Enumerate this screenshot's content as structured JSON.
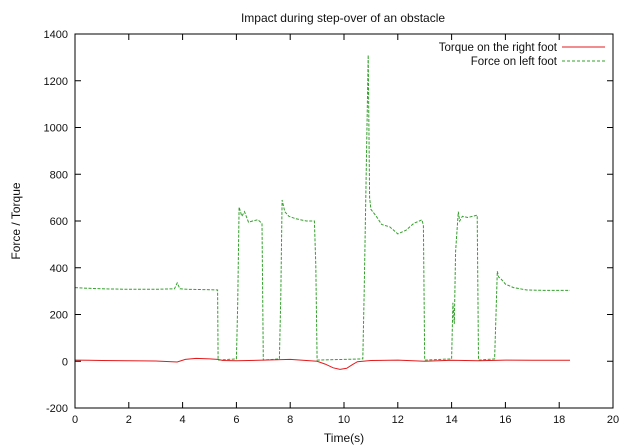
{
  "chart_data": {
    "type": "line",
    "title": "Impact during step-over of an obstacle",
    "xlabel": "Time(s)",
    "ylabel": "Force / Torque",
    "xlim": [
      0,
      20
    ],
    "ylim": [
      -200,
      1400
    ],
    "xticks": [
      "0",
      "2",
      "4",
      "6",
      "8",
      "10",
      "12",
      "14",
      "16",
      "18",
      "20"
    ],
    "yticks": [
      "-200",
      "0",
      "200",
      "400",
      "600",
      "800",
      "1000",
      "1200",
      "1400"
    ],
    "grid": false,
    "legend_position": "top-right",
    "series": [
      {
        "name": "Torque on the right foot",
        "color": "#e41a1c",
        "style": "solid",
        "x": [
          0,
          0.5,
          1,
          2,
          3,
          3.8,
          4.1,
          4.5,
          5,
          5.3,
          5.5,
          6,
          7,
          8,
          9,
          9.3,
          9.6,
          9.85,
          10.1,
          10.3,
          10.5,
          11,
          12,
          13,
          14,
          15,
          16,
          17,
          18.4
        ],
        "y": [
          5,
          4,
          3,
          2,
          1,
          -3,
          8,
          12,
          10,
          8,
          3,
          2,
          5,
          8,
          0,
          -12,
          -28,
          -35,
          -30,
          -15,
          -2,
          3,
          5,
          0,
          4,
          2,
          5,
          4,
          4
        ]
      },
      {
        "name": "Force on left foot",
        "color": "#33a02c",
        "style": "dashed",
        "x": [
          0,
          0.5,
          1,
          2,
          3,
          3.7,
          3.8,
          3.9,
          4.2,
          5.0,
          5.3,
          5.32,
          6.0,
          6.05,
          6.1,
          6.2,
          6.3,
          6.45,
          6.6,
          6.8,
          6.95,
          7.0,
          7.6,
          7.65,
          7.7,
          7.8,
          7.95,
          8.2,
          8.6,
          8.9,
          8.95,
          9.0,
          10.7,
          10.75,
          10.9,
          10.95,
          11.0,
          11.2,
          11.4,
          11.7,
          12.0,
          12.3,
          12.6,
          12.9,
          12.95,
          13.0,
          14.0,
          14.05,
          14.1,
          14.15,
          14.25,
          14.3,
          14.4,
          14.6,
          14.95,
          15.0,
          15.6,
          15.65,
          15.7,
          15.75,
          15.85,
          16.0,
          16.3,
          16.8,
          17.5,
          18.4
        ],
        "y": [
          315,
          312,
          310,
          308,
          308,
          310,
          335,
          310,
          308,
          306,
          305,
          5,
          10,
          245,
          660,
          620,
          640,
          595,
          600,
          605,
          590,
          5,
          10,
          280,
          690,
          640,
          620,
          610,
          600,
          600,
          410,
          5,
          10,
          300,
          1310,
          700,
          650,
          620,
          585,
          575,
          545,
          560,
          590,
          605,
          580,
          5,
          10,
          250,
          160,
          470,
          640,
          600,
          620,
          615,
          625,
          5,
          10,
          200,
          385,
          360,
          350,
          330,
          315,
          305,
          303,
          303
        ]
      }
    ]
  }
}
